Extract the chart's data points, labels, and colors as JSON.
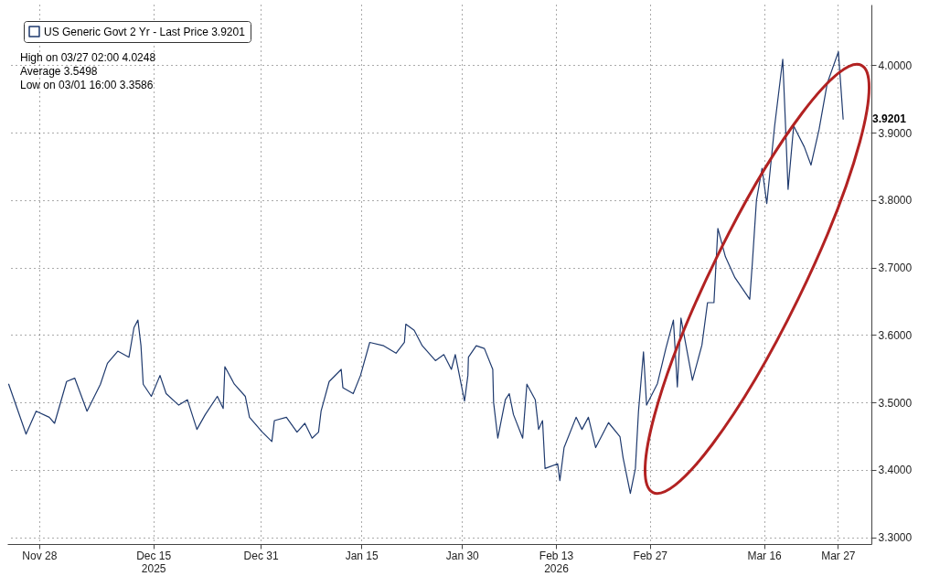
{
  "chart_data": {
    "type": "line",
    "x": [
      "2025-11-23T11:00",
      "2025-11-26T01:00",
      "2025-11-27T13:00",
      "2025-11-29T12:00",
      "2025-11-30T07:00",
      "2025-12-02T02:00",
      "2025-12-03T07:00",
      "2025-12-05T03:00",
      "2025-12-07T03:00",
      "2025-12-08T04:00",
      "2025-12-09T17:00",
      "2025-12-11T09:00",
      "2025-12-12T03:00",
      "2025-12-12T17:00",
      "2025-12-13T04:00",
      "2025-12-13T12:00",
      "2025-12-14T17:00",
      "2025-12-16T00:00",
      "2025-12-16T22:00",
      "2025-12-18T19:00",
      "2025-12-20T02:00",
      "2025-12-21T12:00",
      "2025-12-22T18:00",
      "2025-12-24T13:00",
      "2025-12-25T10:00",
      "2025-12-25T16:00",
      "2025-12-27T02:00",
      "2025-12-28T17:00",
      "2025-12-29T08:00",
      "2025-12-31T06:00",
      "2026-01-01T16:00",
      "2026-01-02T01:00",
      "2026-01-03T20:00",
      "2026-01-05T10:00",
      "2026-01-06T14:00",
      "2026-01-07T16:00",
      "2026-01-08T15:00",
      "2026-01-09T00:00",
      "2026-01-10T05:00",
      "2026-01-12T00:00",
      "2026-01-12T06:00",
      "2026-01-13T19:00",
      "2026-01-14T21:00",
      "2026-01-16T06:00",
      "2026-01-18T08:00",
      "2026-01-20T04:00",
      "2026-01-21T10:00",
      "2026-01-21T15:00",
      "2026-01-22T21:00",
      "2026-01-24T02:00",
      "2026-01-26T01:00",
      "2026-01-27T07:00",
      "2026-01-28T10:00",
      "2026-01-29T00:00",
      "2026-01-30T09:00",
      "2026-01-30T21:00",
      "2026-01-30T23:00",
      "2026-02-01T03:00",
      "2026-02-02T08:00",
      "2026-02-03T14:00",
      "2026-02-03T17:00",
      "2026-02-04T08:00",
      "2026-02-05T11:00",
      "2026-02-06T01:00",
      "2026-02-06T16:00",
      "2026-02-08T01:00",
      "2026-02-08T16:00",
      "2026-02-09T22:00",
      "2026-02-10T10:00",
      "2026-02-11T00:00",
      "2026-02-11T09:00",
      "2026-02-13T06:00",
      "2026-02-13T14:00",
      "2026-02-14T05:00",
      "2026-02-16T00:00",
      "2026-02-16T21:00",
      "2026-02-17T20:00",
      "2026-02-18T22:00",
      "2026-02-20T20:00",
      "2026-02-22T13:00",
      "2026-02-23T00:00",
      "2026-02-24T02:00",
      "2026-02-24T20:00",
      "2026-02-25T07:00",
      "2026-02-26T01:00",
      "2026-02-26T12:00",
      "2026-02-28T03:00",
      "2026-03-01T09:00",
      "2026-03-02T12:00",
      "2026-03-03T02:00",
      "2026-03-03T15:00",
      "2026-03-05T08:00",
      "2026-03-06T18:00",
      "2026-03-07T14:00",
      "2026-03-08T13:00",
      "2026-03-09T03:00",
      "2026-03-10T06:00",
      "2026-03-11T16:00",
      "2026-03-13T21:00",
      "2026-03-14T07:00",
      "2026-03-14T21:00",
      "2026-03-15T17:00",
      "2026-03-16T10:00",
      "2026-03-17T14:00",
      "2026-03-18T19:00",
      "2026-03-19T05:00",
      "2026-03-19T14:00",
      "2026-03-20T10:00",
      "2026-03-22T00:00",
      "2026-03-23T00:00",
      "2026-03-24T05:00",
      "2026-03-25T10:00",
      "2026-03-27T02:00",
      "2026-03-27T19:00"
    ],
    "series": [
      {
        "name": "US Generic Govt 2 Yr - Last Price 3.9201",
        "color": "#1f3a6e",
        "values": [
          3.527,
          3.453,
          3.487,
          3.478,
          3.469,
          3.531,
          3.536,
          3.487,
          3.527,
          3.558,
          3.576,
          3.567,
          3.611,
          3.622,
          3.584,
          3.527,
          3.509,
          3.54,
          3.513,
          3.496,
          3.504,
          3.46,
          3.482,
          3.509,
          3.491,
          3.553,
          3.527,
          3.509,
          3.478,
          3.456,
          3.442,
          3.473,
          3.478,
          3.456,
          3.469,
          3.447,
          3.456,
          3.487,
          3.531,
          3.549,
          3.522,
          3.513,
          3.54,
          3.589,
          3.584,
          3.573,
          3.589,
          3.616,
          3.607,
          3.584,
          3.562,
          3.571,
          3.549,
          3.571,
          3.502,
          3.54,
          3.567,
          3.584,
          3.58,
          3.549,
          3.5,
          3.447,
          3.504,
          3.513,
          3.482,
          3.447,
          3.527,
          3.504,
          3.46,
          3.473,
          3.402,
          3.409,
          3.384,
          3.433,
          3.478,
          3.46,
          3.478,
          3.433,
          3.47,
          3.449,
          3.418,
          3.365,
          3.402,
          3.486,
          3.575,
          3.496,
          3.528,
          3.58,
          3.622,
          3.523,
          3.625,
          3.533,
          3.585,
          3.648,
          3.648,
          3.758,
          3.716,
          3.685,
          3.653,
          3.711,
          3.8,
          3.847,
          3.795,
          3.91,
          4.009,
          3.91,
          3.816,
          3.91,
          3.879,
          3.852,
          3.905,
          3.973,
          4.02,
          3.9201
        ]
      }
    ],
    "xlim": [
      "2025-11-23T06:00",
      "2026-04-01T00:00"
    ],
    "xticks": [
      {
        "value": "2025-11-28",
        "label": "Nov 28"
      },
      {
        "value": "2025-12-15",
        "label": "Dec 15\n2025"
      },
      {
        "value": "2025-12-31",
        "label": "Dec 31"
      },
      {
        "value": "2026-01-15",
        "label": "Jan 15"
      },
      {
        "value": "2026-01-30",
        "label": "Jan 30"
      },
      {
        "value": "2026-02-13",
        "label": "Feb 13\n2026"
      },
      {
        "value": "2026-02-27",
        "label": "Feb 27"
      },
      {
        "value": "2026-03-16",
        "label": "Mar 16"
      },
      {
        "value": "2026-03-27",
        "label": "Mar 27"
      }
    ],
    "ylim": [
      3.29,
      4.09
    ],
    "yticks": [
      {
        "value": 3.3,
        "label": "3.3000"
      },
      {
        "value": 3.4,
        "label": "3.4000"
      },
      {
        "value": 3.5,
        "label": "3.5000"
      },
      {
        "value": 3.6,
        "label": "3.6000"
      },
      {
        "value": 3.7,
        "label": "3.7000"
      },
      {
        "value": 3.8,
        "label": "3.8000"
      },
      {
        "value": 3.9,
        "label": "3.9000"
      },
      {
        "value": 4.0,
        "label": "4.0000"
      }
    ],
    "grid": true,
    "legend": "top left",
    "annotations": [
      "High on 03/27 02:00 4.0248",
      "Average 3.5498",
      "Low on 03/01 16:00 3.3586",
      {
        "text": "3.9201",
        "x": "2026-03-27T19:00",
        "y": 3.9201
      }
    ]
  }
}
